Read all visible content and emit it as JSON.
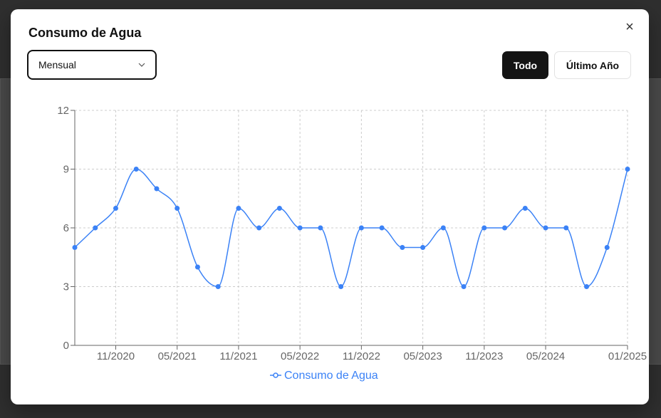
{
  "modal": {
    "title": "Consumo de Agua",
    "select_value": "Mensual",
    "buttons": {
      "all": "Todo",
      "last_year": "Último Año"
    },
    "close_icon": "×"
  },
  "colors": {
    "series": "#3b82f6",
    "active_button": "#141414",
    "grid": "#cccccc"
  },
  "chart_data": {
    "type": "line",
    "title": "",
    "xlabel": "",
    "ylabel": "",
    "ylim": [
      0,
      12
    ],
    "yticks": [
      0,
      3,
      6,
      9,
      12
    ],
    "x_tick_labels": [
      "11/2020",
      "05/2021",
      "11/2021",
      "05/2022",
      "11/2022",
      "05/2023",
      "11/2023",
      "05/2024",
      "01/2025"
    ],
    "x_tick_indices": [
      2,
      5,
      8,
      11,
      14,
      17,
      20,
      23,
      27
    ],
    "grid": true,
    "legend": "bottom-center",
    "series": [
      {
        "name": "Consumo de Agua",
        "values": [
          5,
          6,
          7,
          9,
          8,
          7,
          4,
          3,
          7,
          6,
          7,
          6,
          6,
          3,
          6,
          6,
          5,
          5,
          6,
          3,
          6,
          6,
          7,
          6,
          6,
          3,
          5,
          9
        ]
      }
    ]
  }
}
